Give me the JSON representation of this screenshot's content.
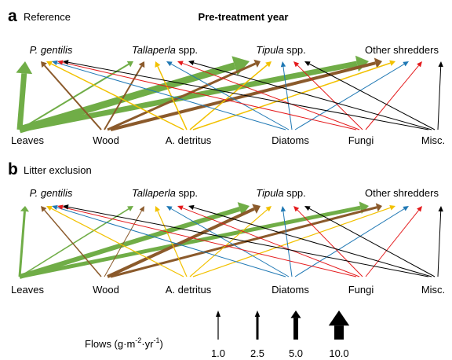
{
  "panels": [
    {
      "letter": "a",
      "label": "Reference",
      "title": "Pre-treatment year",
      "consumers": [
        {
          "italic": "P. gentilis"
        },
        {
          "italic": "Tallaperla",
          "text": " spp."
        },
        {
          "italic": "Tipula",
          "text": " spp."
        },
        {
          "text": "Other shredders"
        }
      ],
      "sources": [
        "Leaves",
        "Wood",
        "A. detritus",
        "Diatoms",
        "Fungi",
        "Misc."
      ]
    },
    {
      "letter": "b",
      "label": "Litter exclusion",
      "consumers": [
        {
          "italic": "P. gentilis"
        },
        {
          "italic": "Tallaperla",
          "text": " spp."
        },
        {
          "italic": "Tipula",
          "text": " spp."
        },
        {
          "text": "Other shredders"
        }
      ],
      "sources": [
        "Leaves",
        "Wood",
        "A. detritus",
        "Diatoms",
        "Fungi",
        "Misc."
      ]
    }
  ],
  "legend": {
    "title": [
      "Flows (g·m",
      "-2",
      "·yr",
      "-1",
      ")"
    ],
    "values": [
      "1.0",
      "2.5",
      "5.0",
      "10.0"
    ]
  }
}
